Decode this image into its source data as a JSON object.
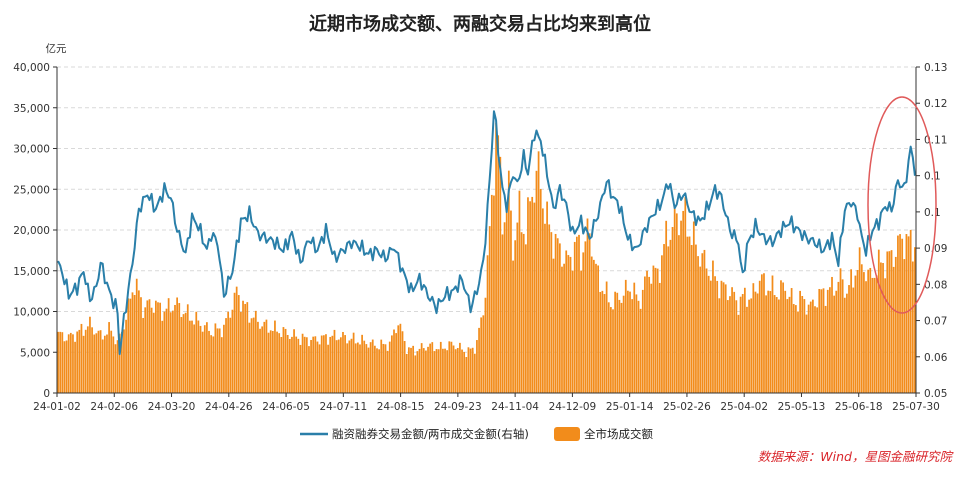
{
  "chart_data": {
    "type": "bar+line",
    "title": "近期市场成交额、两融交易占比均来到高位",
    "left_axis": {
      "unit": "亿元",
      "min": 0,
      "max": 40000,
      "ticks": [
        "0",
        "5,000",
        "10,000",
        "15,000",
        "20,000",
        "25,000",
        "30,000",
        "35,000",
        "40,000"
      ]
    },
    "right_axis": {
      "min": 0.05,
      "max": 0.13,
      "ticks": [
        "0.05",
        "0.06",
        "0.07",
        "0.08",
        "0.09",
        "0.1",
        "0.1",
        "0.11",
        "0.12",
        "0.13"
      ]
    },
    "x_tick_labels": [
      "24-01-02",
      "24-02-06",
      "24-03-20",
      "24-04-26",
      "24-06-05",
      "24-07-11",
      "24-08-15",
      "24-09-23",
      "24-11-04",
      "24-12-09",
      "25-01-14",
      "25-02-26",
      "25-04-02",
      "25-05-13",
      "25-06-18",
      "25-07-30"
    ],
    "series": [
      {
        "name": "全市场成交额",
        "type": "bar",
        "axis": "left",
        "color": "#f28c1b",
        "anchors": [
          [
            0,
            7200
          ],
          [
            5,
            6800
          ],
          [
            10,
            7500
          ],
          [
            15,
            8400
          ],
          [
            20,
            7000
          ],
          [
            25,
            7800
          ],
          [
            28,
            6000
          ],
          [
            32,
            9300
          ],
          [
            36,
            13700
          ],
          [
            40,
            10500
          ],
          [
            45,
            11000
          ],
          [
            50,
            10000
          ],
          [
            55,
            11000
          ],
          [
            60,
            9800
          ],
          [
            66,
            8700
          ],
          [
            72,
            7500
          ],
          [
            78,
            8000
          ],
          [
            84,
            12300
          ],
          [
            90,
            9700
          ],
          [
            96,
            8400
          ],
          [
            102,
            7800
          ],
          [
            108,
            7300
          ],
          [
            114,
            6700
          ],
          [
            120,
            6500
          ],
          [
            126,
            6800
          ],
          [
            132,
            7000
          ],
          [
            138,
            6600
          ],
          [
            144,
            6300
          ],
          [
            150,
            5800
          ],
          [
            156,
            6000
          ],
          [
            160,
            8800
          ],
          [
            164,
            5500
          ],
          [
            168,
            5200
          ],
          [
            174,
            5800
          ],
          [
            180,
            5500
          ],
          [
            186,
            6000
          ],
          [
            192,
            5000
          ],
          [
            196,
            5500
          ],
          [
            198,
            7500
          ],
          [
            200,
            10000
          ],
          [
            202,
            16000
          ],
          [
            204,
            23000
          ],
          [
            206,
            33000
          ],
          [
            207,
            31000
          ],
          [
            209,
            21000
          ],
          [
            212,
            25000
          ],
          [
            214,
            18000
          ],
          [
            217,
            22000
          ],
          [
            220,
            19500
          ],
          [
            223,
            25000
          ],
          [
            226,
            27000
          ],
          [
            228,
            24000
          ],
          [
            230,
            21000
          ],
          [
            233,
            19000
          ],
          [
            236,
            17500
          ],
          [
            240,
            16000
          ],
          [
            244,
            18500
          ],
          [
            246,
            17000
          ],
          [
            250,
            20000
          ],
          [
            253,
            15000
          ],
          [
            256,
            13000
          ],
          [
            260,
            11000
          ],
          [
            265,
            12000
          ],
          [
            270,
            13000
          ],
          [
            273,
            11000
          ],
          [
            278,
            15000
          ],
          [
            282,
            14500
          ],
          [
            286,
            19000
          ],
          [
            290,
            21000
          ],
          [
            294,
            22000
          ],
          [
            297,
            20000
          ],
          [
            300,
            18000
          ],
          [
            304,
            16000
          ],
          [
            308,
            14500
          ],
          [
            312,
            13000
          ],
          [
            316,
            12500
          ],
          [
            320,
            11000
          ],
          [
            322,
            11700
          ],
          [
            324,
            12000
          ],
          [
            326,
            11500
          ],
          [
            330,
            14000
          ],
          [
            334,
            13000
          ],
          [
            338,
            12300
          ],
          [
            342,
            13000
          ],
          [
            346,
            11000
          ],
          [
            350,
            11500
          ],
          [
            354,
            10500
          ],
          [
            358,
            12000
          ],
          [
            362,
            12500
          ],
          [
            365,
            13000
          ],
          [
            368,
            14000
          ],
          [
            371,
            12500
          ],
          [
            374,
            14000
          ],
          [
            376,
            16000
          ],
          [
            379,
            15500
          ],
          [
            382,
            14000
          ],
          [
            385,
            15500
          ],
          [
            388,
            16000
          ],
          [
            391,
            16500
          ],
          [
            394,
            17500
          ],
          [
            397,
            19000
          ],
          [
            400,
            18500
          ],
          [
            403,
            18300
          ]
        ]
      },
      {
        "name": "融资融券交易金额/两市成交金额(右轴)",
        "type": "line",
        "axis": "right",
        "color": "#2a7fa9",
        "anchors": [
          [
            0,
            0.082
          ],
          [
            3,
            0.078
          ],
          [
            5,
            0.074
          ],
          [
            9,
            0.076
          ],
          [
            12,
            0.08
          ],
          [
            15,
            0.073
          ],
          [
            18,
            0.076
          ],
          [
            20,
            0.082
          ],
          [
            24,
            0.075
          ],
          [
            28,
            0.07
          ],
          [
            29,
            0.06
          ],
          [
            31,
            0.068
          ],
          [
            35,
            0.082
          ],
          [
            38,
            0.095
          ],
          [
            42,
            0.099
          ],
          [
            46,
            0.095
          ],
          [
            50,
            0.1
          ],
          [
            53,
            0.098
          ],
          [
            56,
            0.09
          ],
          [
            60,
            0.084
          ],
          [
            63,
            0.093
          ],
          [
            66,
            0.091
          ],
          [
            70,
            0.085
          ],
          [
            72,
            0.089
          ],
          [
            75,
            0.087
          ],
          [
            78,
            0.074
          ],
          [
            82,
            0.08
          ],
          [
            86,
            0.092
          ],
          [
            90,
            0.094
          ],
          [
            94,
            0.089
          ],
          [
            98,
            0.088
          ],
          [
            102,
            0.087
          ],
          [
            106,
            0.085
          ],
          [
            110,
            0.089
          ],
          [
            114,
            0.082
          ],
          [
            118,
            0.088
          ],
          [
            122,
            0.085
          ],
          [
            126,
            0.09
          ],
          [
            130,
            0.083
          ],
          [
            134,
            0.085
          ],
          [
            138,
            0.087
          ],
          [
            142,
            0.086
          ],
          [
            146,
            0.084
          ],
          [
            150,
            0.085
          ],
          [
            154,
            0.083
          ],
          [
            158,
            0.086
          ],
          [
            162,
            0.08
          ],
          [
            166,
            0.075
          ],
          [
            170,
            0.078
          ],
          [
            174,
            0.074
          ],
          [
            178,
            0.071
          ],
          [
            182,
            0.074
          ],
          [
            186,
            0.075
          ],
          [
            190,
            0.078
          ],
          [
            194,
            0.071
          ],
          [
            197,
            0.075
          ],
          [
            200,
            0.082
          ],
          [
            202,
            0.095
          ],
          [
            204,
            0.11
          ],
          [
            205,
            0.12
          ],
          [
            207,
            0.11
          ],
          [
            209,
            0.1
          ],
          [
            211,
            0.096
          ],
          [
            214,
            0.104
          ],
          [
            216,
            0.101
          ],
          [
            219,
            0.108
          ],
          [
            221,
            0.104
          ],
          [
            224,
            0.114
          ],
          [
            227,
            0.112
          ],
          [
            230,
            0.104
          ],
          [
            233,
            0.095
          ],
          [
            236,
            0.1
          ],
          [
            239,
            0.096
          ],
          [
            242,
            0.089
          ],
          [
            246,
            0.092
          ],
          [
            250,
            0.088
          ],
          [
            254,
            0.094
          ],
          [
            258,
            0.102
          ],
          [
            261,
            0.098
          ],
          [
            264,
            0.096
          ],
          [
            268,
            0.088
          ],
          [
            272,
            0.085
          ],
          [
            276,
            0.09
          ],
          [
            280,
            0.094
          ],
          [
            284,
            0.097
          ],
          [
            287,
            0.102
          ],
          [
            290,
            0.096
          ],
          [
            294,
            0.099
          ],
          [
            298,
            0.094
          ],
          [
            302,
            0.092
          ],
          [
            306,
            0.096
          ],
          [
            309,
            0.1
          ],
          [
            312,
            0.098
          ],
          [
            316,
            0.09
          ],
          [
            320,
            0.087
          ],
          [
            322,
            0.078
          ],
          [
            324,
            0.086
          ],
          [
            328,
            0.091
          ],
          [
            332,
            0.088
          ],
          [
            336,
            0.087
          ],
          [
            340,
            0.09
          ],
          [
            344,
            0.092
          ],
          [
            348,
            0.09
          ],
          [
            352,
            0.088
          ],
          [
            356,
            0.087
          ],
          [
            360,
            0.085
          ],
          [
            364,
            0.088
          ],
          [
            367,
            0.082
          ],
          [
            370,
            0.095
          ],
          [
            373,
            0.097
          ],
          [
            376,
            0.094
          ],
          [
            378,
            0.088
          ],
          [
            380,
            0.085
          ],
          [
            383,
            0.09
          ],
          [
            386,
            0.092
          ],
          [
            389,
            0.096
          ],
          [
            392,
            0.095
          ],
          [
            395,
            0.102
          ],
          [
            398,
            0.1
          ],
          [
            401,
            0.11
          ],
          [
            403,
            0.105
          ]
        ]
      }
    ],
    "legend": [
      "融资融券交易金额/两市成交金额(右轴)",
      "全市场成交额"
    ],
    "source": "数据来源：Wind，星图金融研究院",
    "annotation": "red ellipse highlighting the most recent period",
    "colors": {
      "bar": "#f28c1b",
      "line": "#2a7fa9",
      "circle": "#e05a5a",
      "grid": "#d9d9d9",
      "source": "#d9252b"
    }
  }
}
